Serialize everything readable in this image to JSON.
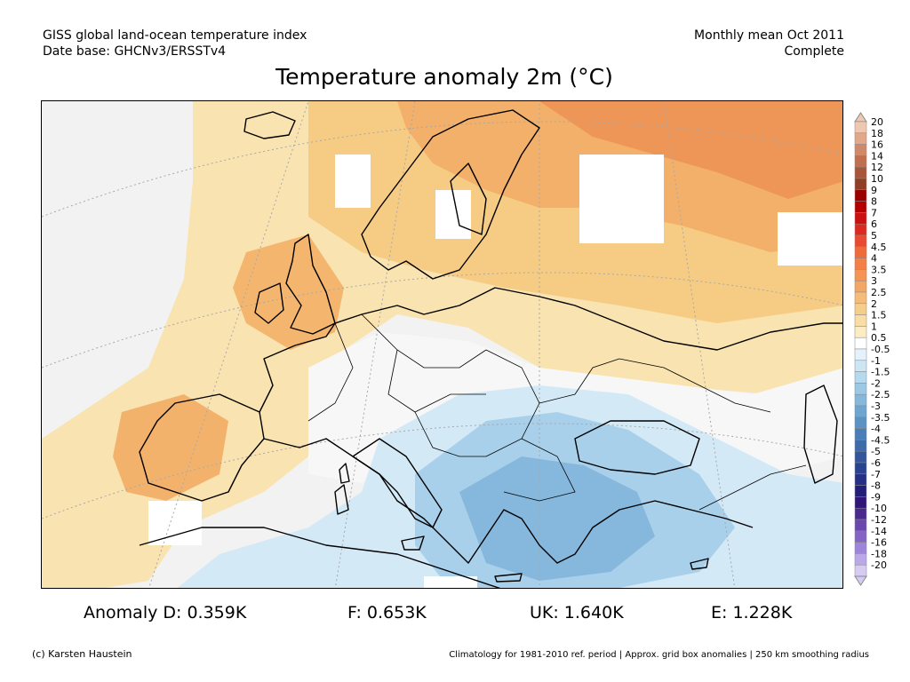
{
  "header": {
    "line1_left": "GISS global land-ocean temperature index",
    "line2_left": "Date base: GHCNv3/ERSSTv4",
    "line1_right": "Monthly mean Oct 2011",
    "line2_right": "Complete"
  },
  "title": "Temperature anomaly 2m (°C)",
  "colorbar": {
    "labels": [
      "20",
      "18",
      "16",
      "14",
      "12",
      "10",
      "9",
      "8",
      "7",
      "6",
      "5",
      "4.5",
      "4",
      "3.5",
      "3",
      "2.5",
      "2",
      "1.5",
      "1",
      "0.5",
      "-0.5",
      "-1",
      "-1.5",
      "-2",
      "-2.5",
      "-3",
      "-3.5",
      "-4",
      "-4.5",
      "-5",
      "-6",
      "-7",
      "-8",
      "-9",
      "-10",
      "-12",
      "-14",
      "-16",
      "-18",
      "-20"
    ],
    "colors": [
      "#f0c8b0",
      "#e2a88a",
      "#d08a6a",
      "#c0704f",
      "#a8553a",
      "#8f3f28",
      "#9c0000",
      "#b50000",
      "#cc0f0f",
      "#dd2a20",
      "#ea4a30",
      "#f06a3a",
      "#f48048",
      "#f59455",
      "#f4a765",
      "#f4bc78",
      "#f6ce8c",
      "#f8dea5",
      "#fbecc4",
      "#ffffff",
      "#e6f2fb",
      "#cde6f4",
      "#b5d9ee",
      "#9bc9e4",
      "#84b9db",
      "#6ea6cf",
      "#5c93c4",
      "#4b7eb8",
      "#3f6bab",
      "#33569d",
      "#2a4390",
      "#253184",
      "#231f78",
      "#301679",
      "#4a2a8f",
      "#6a48ad",
      "#8465c6",
      "#9f85da",
      "#bba8e8",
      "#d6cbf2"
    ]
  },
  "stats": {
    "anomaly_d": "Anomaly D: 0.359K",
    "f": "F: 0.653K",
    "uk": "UK: 1.640K",
    "e": "E: 1.228K"
  },
  "footer": {
    "left": "(c) Karsten Haustein",
    "right": "Climatology for 1981-2010 ref. period | Approx. grid box anomalies | 250 km smoothing radius"
  }
}
